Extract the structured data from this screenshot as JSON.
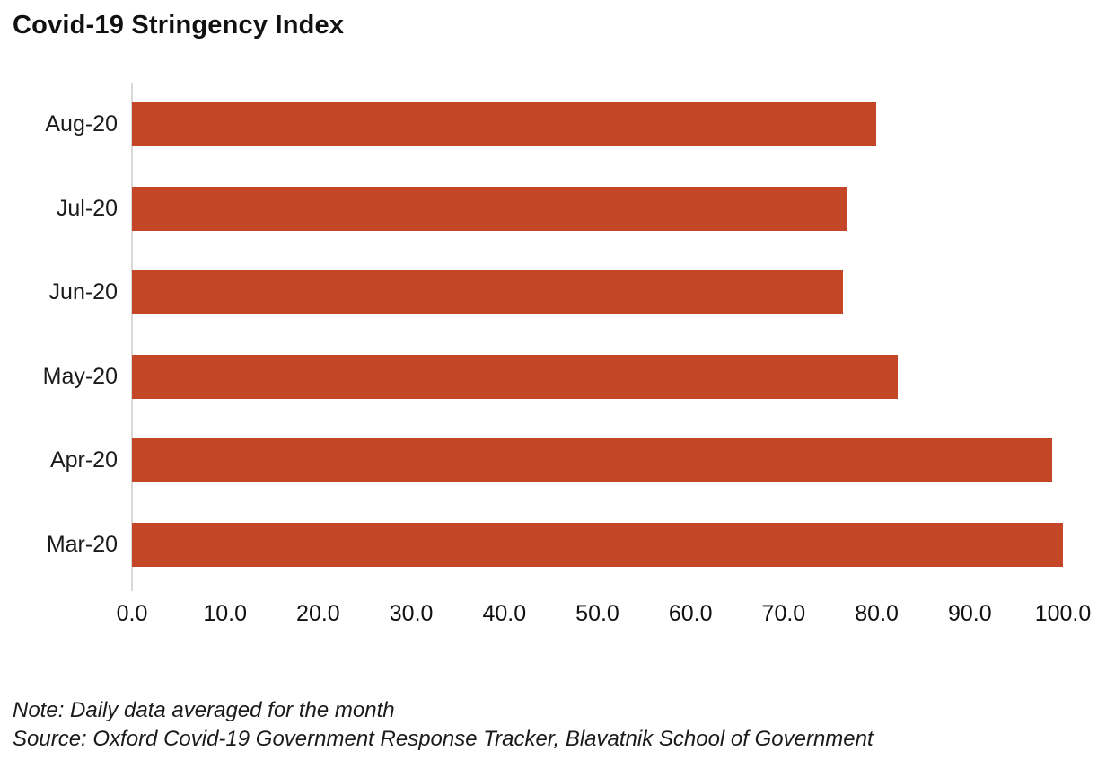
{
  "title": "Covid-19 Stringency Index",
  "footer": {
    "note": "Note: Daily data averaged for the month",
    "source": "Source: Oxford Covid-19 Government Response Tracker, Blavatnik School of Government"
  },
  "colors": {
    "bar": "#c34727",
    "axis_line": "#d9d9d9",
    "text": "#1a1a1a"
  },
  "chart_data": {
    "type": "bar",
    "orientation": "horizontal",
    "title": "Covid-19 Stringency Index",
    "categories": [
      "Aug-20",
      "Jul-20",
      "Jun-20",
      "May-20",
      "Apr-20",
      "Mar-20"
    ],
    "values": [
      79.9,
      76.9,
      76.4,
      82.3,
      98.8,
      100.0
    ],
    "xlabel": "",
    "ylabel": "",
    "xlim": [
      0,
      100
    ],
    "xtick_labels": [
      "0.0",
      "10.0",
      "20.0",
      "30.0",
      "40.0",
      "50.0",
      "60.0",
      "70.0",
      "80.0",
      "90.0",
      "100.0"
    ],
    "grid": false,
    "legend": false
  }
}
